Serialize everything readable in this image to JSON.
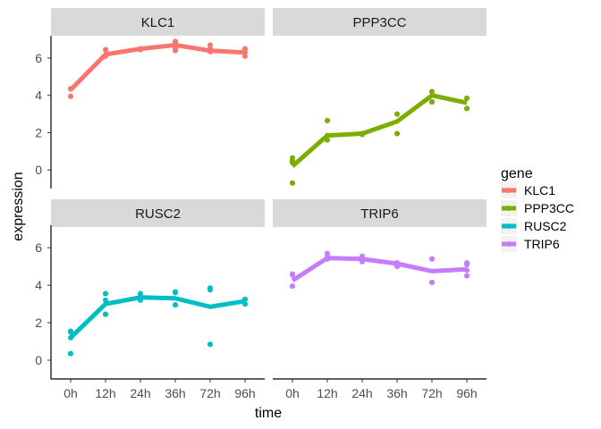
{
  "chart_data": {
    "type": "scatter",
    "xlabel": "time",
    "ylabel": "expression",
    "x_categories": [
      "0h",
      "12h",
      "24h",
      "36h",
      "72h",
      "96h"
    ],
    "y_ticks": [
      0,
      2,
      4,
      6
    ],
    "ylim": [
      -1,
      7.2
    ],
    "grid": false,
    "facets_layout": "2x2",
    "legend": {
      "title": "gene",
      "position": "right",
      "items": [
        "KLC1",
        "PPP3CC",
        "RUSC2",
        "TRIP6"
      ]
    },
    "series": [
      {
        "name": "KLC1",
        "color": "#F8766D",
        "trend": [
          4.3,
          6.2,
          6.5,
          6.7,
          6.4,
          6.3
        ],
        "points": [
          [
            0,
            4.35
          ],
          [
            0,
            3.95
          ],
          [
            0,
            4.35
          ],
          [
            0,
            3.95
          ],
          [
            0,
            4.35
          ],
          [
            1,
            6.1
          ],
          [
            1,
            6.45
          ],
          [
            1,
            6.45
          ],
          [
            1,
            6.15
          ],
          [
            1,
            6.15
          ],
          [
            2,
            6.45
          ],
          [
            2,
            6.5
          ],
          [
            2,
            6.5
          ],
          [
            2,
            6.5
          ],
          [
            3,
            6.9
          ],
          [
            3,
            6.85
          ],
          [
            3,
            6.4
          ],
          [
            3,
            6.5
          ],
          [
            3,
            6.6
          ],
          [
            4,
            6.7
          ],
          [
            4,
            6.5
          ],
          [
            4,
            6.35
          ],
          [
            4,
            6.4
          ],
          [
            4,
            6.35
          ],
          [
            5,
            6.3
          ],
          [
            5,
            6.5
          ],
          [
            5,
            6.1
          ],
          [
            5,
            6.5
          ]
        ]
      },
      {
        "name": "PPP3CC",
        "color": "#7CAE00",
        "trend": [
          0.2,
          1.85,
          1.95,
          2.6,
          4.0,
          3.6
        ],
        "points": [
          [
            0,
            -0.7
          ],
          [
            0,
            0.4
          ],
          [
            0,
            0.65
          ],
          [
            0,
            -0.7
          ],
          [
            0,
            0.4
          ],
          [
            0,
            0.5
          ],
          [
            1,
            2.65
          ],
          [
            1,
            2.65
          ],
          [
            1,
            1.6
          ],
          [
            1,
            1.85
          ],
          [
            2,
            1.9
          ],
          [
            2,
            1.95
          ],
          [
            2,
            1.95
          ],
          [
            3,
            3.0
          ],
          [
            3,
            3.0
          ],
          [
            3,
            1.95
          ],
          [
            3,
            1.95
          ],
          [
            4,
            4.2
          ],
          [
            4,
            3.65
          ],
          [
            4,
            3.65
          ],
          [
            4,
            4.2
          ],
          [
            5,
            3.85
          ],
          [
            5,
            3.85
          ],
          [
            5,
            3.3
          ],
          [
            5,
            3.3
          ]
        ]
      },
      {
        "name": "RUSC2",
        "color": "#00BFC4",
        "trend": [
          1.2,
          3.0,
          3.35,
          3.3,
          2.85,
          3.15
        ],
        "points": [
          [
            0,
            0.35
          ],
          [
            0,
            1.2
          ],
          [
            0,
            1.5
          ],
          [
            0,
            0.35
          ],
          [
            0,
            1.5
          ],
          [
            0,
            1.55
          ],
          [
            1,
            3.55
          ],
          [
            1,
            2.45
          ],
          [
            1,
            2.45
          ],
          [
            1,
            3.55
          ],
          [
            1,
            3.2
          ],
          [
            2,
            3.2
          ],
          [
            2,
            3.4
          ],
          [
            2,
            3.55
          ],
          [
            2,
            3.55
          ],
          [
            3,
            2.95
          ],
          [
            3,
            3.6
          ],
          [
            3,
            3.65
          ],
          [
            3,
            2.95
          ],
          [
            4,
            0.85
          ],
          [
            4,
            3.85
          ],
          [
            4,
            0.85
          ],
          [
            4,
            3.75
          ],
          [
            5,
            3.0
          ],
          [
            5,
            3.25
          ],
          [
            5,
            3.25
          ],
          [
            5,
            3.0
          ]
        ]
      },
      {
        "name": "TRIP6",
        "color": "#C77CFF",
        "trend": [
          4.25,
          5.45,
          5.4,
          5.15,
          4.75,
          4.85
        ],
        "points": [
          [
            0,
            3.95
          ],
          [
            0,
            4.55
          ],
          [
            0,
            4.6
          ],
          [
            0,
            3.95
          ],
          [
            1,
            5.7
          ],
          [
            1,
            5.4
          ],
          [
            1,
            5.4
          ],
          [
            1,
            5.55
          ],
          [
            2,
            5.5
          ],
          [
            2,
            5.25
          ],
          [
            2,
            5.55
          ],
          [
            2,
            5.4
          ],
          [
            3,
            5.2
          ],
          [
            3,
            5.0
          ],
          [
            3,
            5.1
          ],
          [
            4,
            5.4
          ],
          [
            4,
            4.15
          ],
          [
            4,
            4.15
          ],
          [
            4,
            5.4
          ],
          [
            5,
            5.1
          ],
          [
            5,
            4.5
          ],
          [
            5,
            5.2
          ],
          [
            5,
            4.8
          ]
        ]
      }
    ]
  }
}
